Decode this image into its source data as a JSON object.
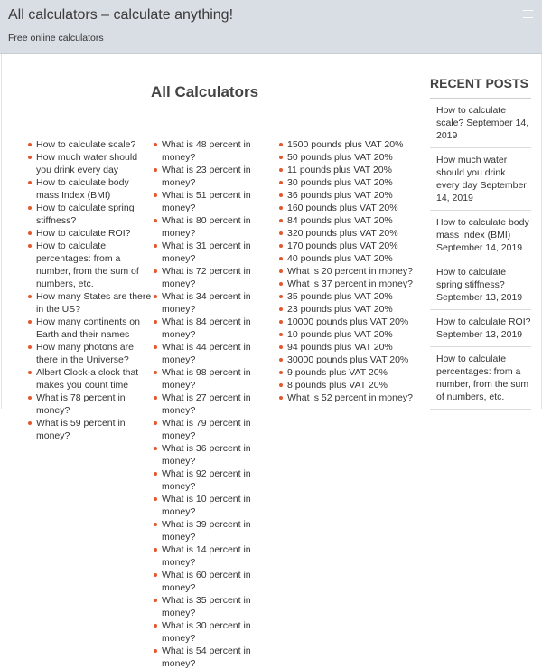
{
  "header": {
    "title": "All calculators – calculate anything!",
    "description": "Free online calculators",
    "menu_icon": "hamburger-menu-icon"
  },
  "main": {
    "title": "All Calculators",
    "column_a": [
      "How to calculate scale?",
      "How much water should you drink every day",
      "How to calculate body mass Index (BMI)",
      "How to calculate spring stiffness?",
      "How to calculate ROI?",
      "How to calculate percentages: from a number, from the sum of numbers, etc.",
      "How many States are there in the US?",
      "How many continents on Earth and their names",
      "How many photons are there in the Universe?",
      "Albert Clock-a clock that makes you count time",
      "What is 78 percent in money?",
      "What is 59 percent in money?"
    ],
    "column_b": [
      "What is 48 percent in money?",
      "What is 23 percent in money?",
      "What is 51 percent in money?",
      "What is 80 percent in money?",
      "What is 31 percent in money?",
      "What is 72 percent in money?",
      "What is 34 percent in money?",
      "What is 84 percent in money?",
      "What is 44 percent in money?",
      "What is 98 percent in money?",
      "What is 27 percent in money?",
      "What is 79 percent in money?",
      "What is 36 percent in money?",
      "What is 92 percent in money?",
      "What is 10 percent in money?",
      "What is 39 percent in money?",
      "What is 14 percent in money?",
      "What is 60 percent in money?",
      "What is 35 percent in money?",
      "What is 30 percent in money?",
      "What is 54 percent in money?"
    ],
    "column_c": [
      "1500 pounds plus VAT 20%",
      "50 pounds plus VAT 20%",
      "11 pounds plus VAT 20%",
      "30 pounds plus VAT 20%",
      "36 pounds plus VAT 20%",
      "160 pounds plus VAT 20%",
      "84 pounds plus VAT 20%",
      "320 pounds plus VAT 20%",
      "170 pounds plus VAT 20%",
      "40 pounds plus VAT 20%",
      "What is 20 percent in money?",
      "What is 37 percent in money?",
      "35 pounds plus VAT 20%",
      "23 pounds plus VAT 20%",
      "10000 pounds plus VAT 20%",
      "10 pounds plus VAT 20%",
      "94 pounds plus VAT 20%",
      "30000 pounds plus VAT 20%",
      "9 pounds plus VAT 20%",
      "8 pounds plus VAT 20%",
      "What is 52 percent in money?"
    ]
  },
  "sidebar": {
    "title": "RECENT POSTS",
    "posts": [
      "How to calculate scale? September 14, 2019",
      "How much water should you drink every day September 14, 2019",
      "How to calculate body mass Index (BMI) September 14, 2019",
      "How to calculate spring stiffness? September 13, 2019",
      "How to calculate ROI? September 13, 2019",
      "How to calculate percentages: from a number, from the sum of numbers, etc."
    ]
  },
  "colors": {
    "header_bg": "#d9dde4",
    "bullet": "#e4572e",
    "text": "#333333"
  }
}
